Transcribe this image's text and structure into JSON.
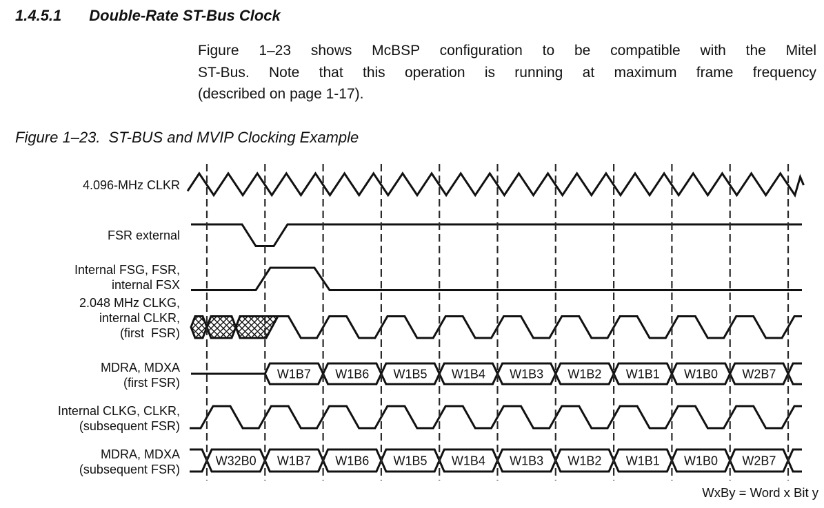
{
  "page": {
    "heading_number": "1.4.5.1",
    "heading_title": "Double-Rate ST-Bus Clock",
    "body_lines": [
      "Figure 1–23 shows McBSP configuration to be compatible with the Mitel",
      "ST-Bus. Note that this operation is running at maximum frame frequency",
      "(described on page 1-17)."
    ],
    "figure_caption_label": "Figure 1–23.",
    "figure_caption_title": "ST-BUS and MVIP Clocking Example"
  },
  "chart_data": {
    "type": "timing-diagram",
    "title": "ST-BUS and MVIP Clocking Example",
    "note": "WxBy = Word x Bit y",
    "num_bit_cells": 10,
    "colors": {
      "ink": "#111111",
      "gridline": "#2a2a2a",
      "background": "#ffffff"
    },
    "signals": [
      {
        "id": "clkr_4096",
        "label_lines": [
          "4.096-MHz CLKR"
        ],
        "waveform": "double-rate-clock"
      },
      {
        "id": "fsr_external",
        "label_lines": [
          "FSR external"
        ],
        "waveform": "active-low-pulse",
        "pulse_at_boundary": 1
      },
      {
        "id": "fsg_internal",
        "label_lines": [
          "Internal FSG, FSR,",
          "internal FSX"
        ],
        "waveform": "active-high-pulse",
        "pulse_cell": 1
      },
      {
        "id": "clkg_first_fsr",
        "label_lines": [
          "2.048 MHz CLKG,",
          "internal CLKR,",
          "(first  FSR)"
        ],
        "waveform": "clock",
        "hatched_start": true
      },
      {
        "id": "mdra_mdxa_first_fsr",
        "label_lines": [
          "MDRA, MDXA",
          "(first FSR)"
        ],
        "waveform": "data-bus",
        "first_cell": 1,
        "bits": [
          "W1B7",
          "W1B6",
          "W1B5",
          "W1B4",
          "W1B3",
          "W1B2",
          "W1B1",
          "W1B0",
          "W2B7"
        ]
      },
      {
        "id": "clkg_subsequent_fsr",
        "label_lines": [
          "Internal CLKG, CLKR,",
          "(subsequent FSR)"
        ],
        "waveform": "clock",
        "hatched_start": false
      },
      {
        "id": "mdra_mdxa_subsequent_fsr",
        "label_lines": [
          "MDRA, MDXA",
          "(subsequent FSR)"
        ],
        "waveform": "data-bus",
        "first_cell": 0,
        "bits": [
          "W32B0",
          "W1B7",
          "W1B6",
          "W1B5",
          "W1B4",
          "W1B3",
          "W1B2",
          "W1B1",
          "W1B0",
          "W2B7"
        ]
      }
    ]
  }
}
